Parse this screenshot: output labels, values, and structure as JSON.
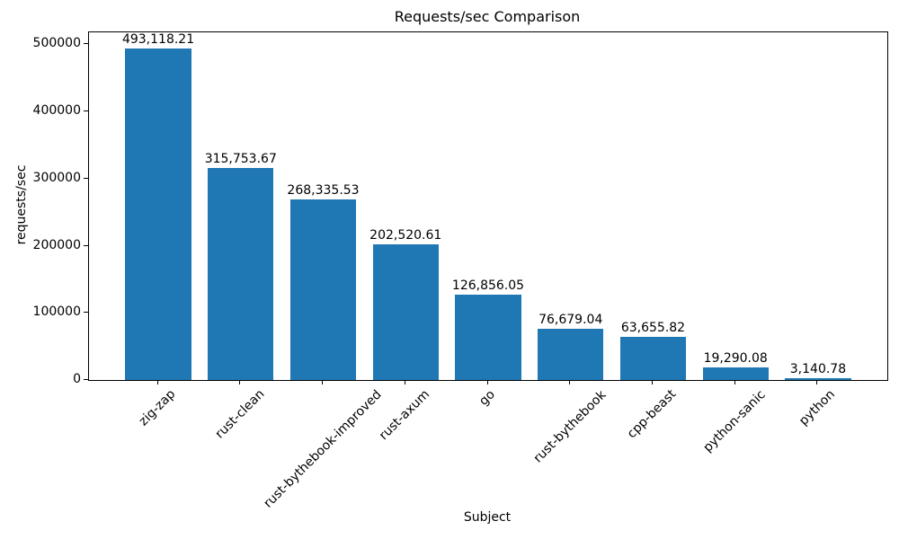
{
  "chart_data": {
    "type": "bar",
    "title": "Requests/sec Comparison",
    "xlabel": "Subject",
    "ylabel": "requests/sec",
    "categories": [
      "zig-zap",
      "rust-clean",
      "rust-bythebook-improved",
      "rust-axum",
      "go",
      "rust-bythebook",
      "cpp-beast",
      "python-sanic",
      "python"
    ],
    "values": [
      493118.21,
      315753.67,
      268335.53,
      202520.61,
      126856.05,
      76679.04,
      63655.82,
      19290.08,
      3140.78
    ],
    "value_labels": [
      "493,118.21",
      "315,753.67",
      "268,335.53",
      "202,520.61",
      "126,856.05",
      "76,679.04",
      "63,655.82",
      "19,290.08",
      "3,140.78"
    ],
    "yticks": [
      0,
      100000,
      200000,
      300000,
      400000,
      500000
    ],
    "ytick_labels": [
      "0",
      "100000",
      "200000",
      "300000",
      "400000",
      "500000"
    ],
    "ylim": [
      0,
      517774
    ],
    "xlim": [
      -0.84,
      8.84
    ],
    "bar_width": 0.8,
    "bar_color": "#1f77b4",
    "text_color": "#000000",
    "grid": false,
    "legend": "none",
    "x_tick_rotation_deg": 45
  }
}
